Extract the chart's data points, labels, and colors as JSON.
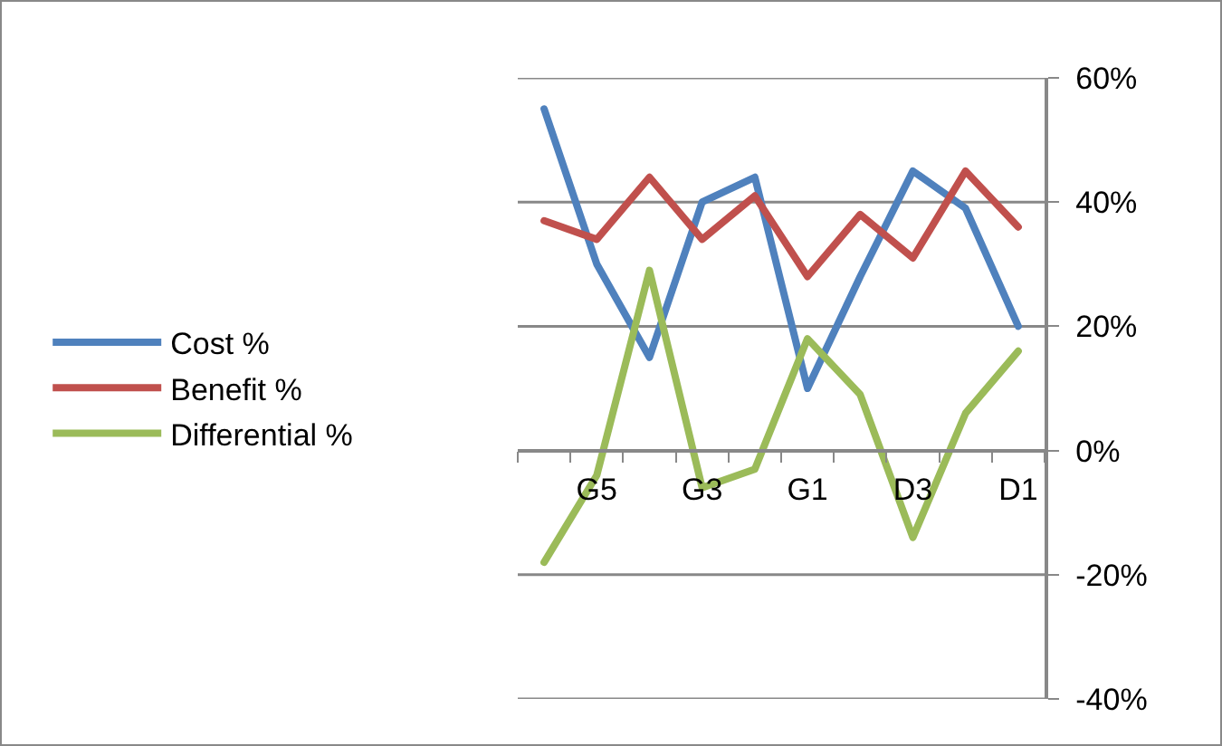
{
  "chart_data": {
    "type": "line",
    "categories": [
      null,
      "G5",
      null,
      "G3",
      null,
      "G1",
      null,
      "D3",
      null,
      "D1"
    ],
    "series": [
      {
        "name": "Cost %",
        "color": "#4f81bd",
        "values": [
          55,
          30,
          15,
          40,
          44,
          10,
          28,
          45,
          39,
          20
        ]
      },
      {
        "name": "Benefit %",
        "color": "#c0504d",
        "values": [
          37,
          34,
          44,
          34,
          41,
          28,
          38,
          31,
          45,
          36
        ]
      },
      {
        "name": "Differential %",
        "color": "#9bbb59",
        "values": [
          -18,
          -4,
          29,
          -6,
          -3,
          18,
          9,
          -14,
          6,
          16
        ]
      }
    ],
    "ylim": [
      -40,
      60
    ],
    "yticks": [
      {
        "value": -40,
        "label": "-40%"
      },
      {
        "value": -20,
        "label": "-20%"
      },
      {
        "value": 0,
        "label": "0%"
      },
      {
        "value": 20,
        "label": "20%"
      },
      {
        "value": 40,
        "label": "40%"
      },
      {
        "value": 60,
        "label": "60%"
      }
    ],
    "grid": "y",
    "legend": "left",
    "marker": "none",
    "line_style": "solid"
  }
}
